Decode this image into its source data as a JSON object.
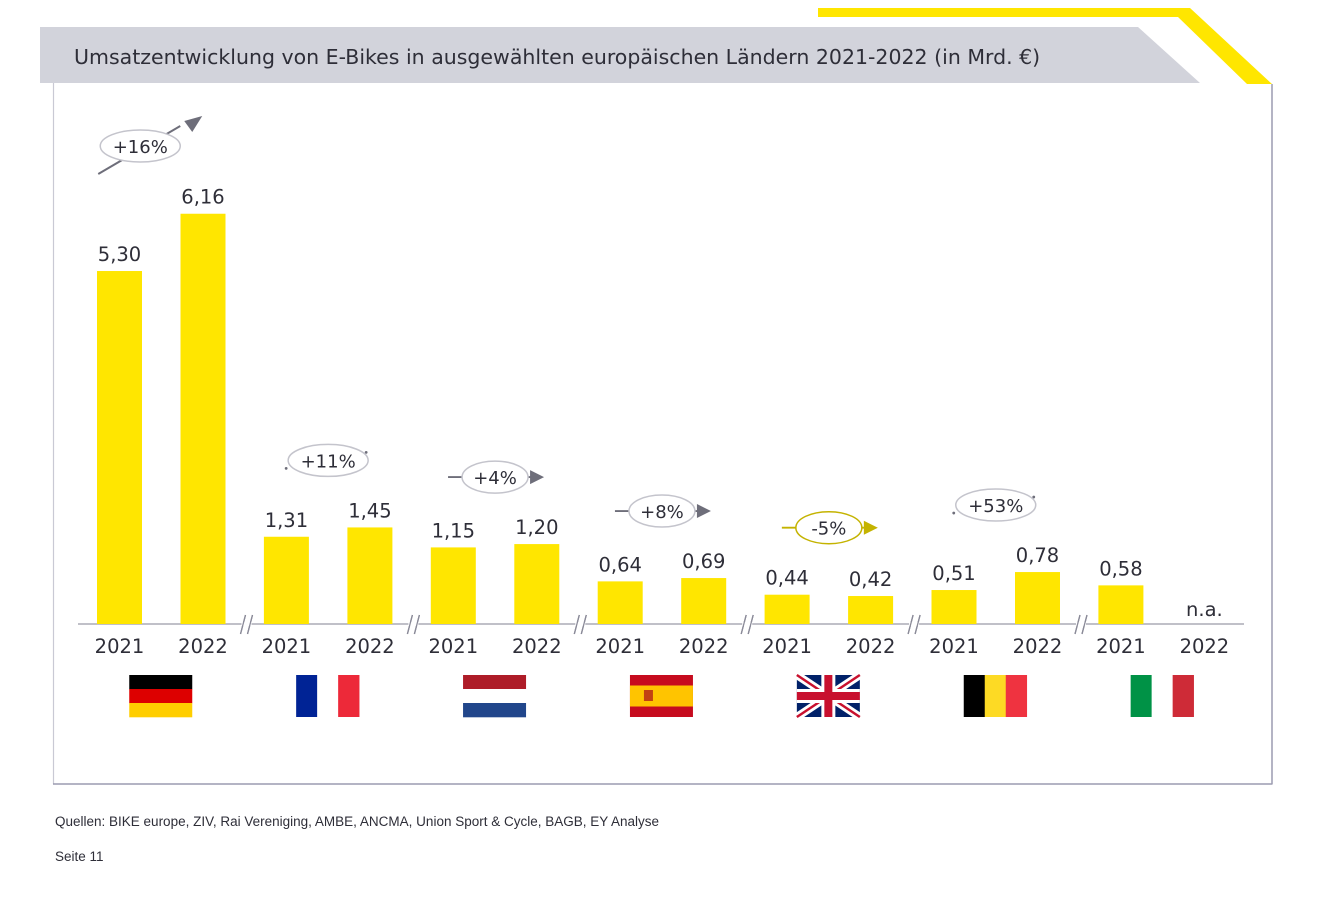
{
  "chart_data": {
    "type": "bar",
    "title": "Umsatzentwicklung von E-Bikes in ausgewählten europäischen Ländern 2021-2022 (in Mrd. €)",
    "xlabel": "",
    "ylabel": "",
    "unit": "Mrd. €",
    "ylim": [
      0,
      6.5
    ],
    "grid": false,
    "legend": "none",
    "bar_color": "#ffe600",
    "groups": [
      {
        "country": "Deutschland",
        "flag": "flag-germany",
        "years": [
          "2021",
          "2022"
        ],
        "values": [
          5.3,
          6.16
        ],
        "labels": [
          "5,30",
          "6,16"
        ],
        "change": "+16%",
        "trend": "up"
      },
      {
        "country": "Frankreich",
        "flag": "flag-france",
        "years": [
          "2021",
          "2022"
        ],
        "values": [
          1.31,
          1.45
        ],
        "labels": [
          "1,31",
          "1,45"
        ],
        "change": "+11%",
        "trend": "up"
      },
      {
        "country": "Niederlande",
        "flag": "flag-netherlands",
        "years": [
          "2021",
          "2022"
        ],
        "values": [
          1.15,
          1.2
        ],
        "labels": [
          "1,15",
          "1,20"
        ],
        "change": "+4%",
        "trend": "flat"
      },
      {
        "country": "Spanien",
        "flag": "flag-spain",
        "years": [
          "2021",
          "2022"
        ],
        "values": [
          0.64,
          0.69
        ],
        "labels": [
          "0,64",
          "0,69"
        ],
        "change": "+8%",
        "trend": "flat"
      },
      {
        "country": "Vereinigtes Königreich",
        "flag": "flag-uk",
        "years": [
          "2021",
          "2022"
        ],
        "values": [
          0.44,
          0.42
        ],
        "labels": [
          "0,44",
          "0,42"
        ],
        "change": "-5%",
        "trend": "down"
      },
      {
        "country": "Belgien",
        "flag": "flag-belgium",
        "years": [
          "2021",
          "2022"
        ],
        "values": [
          0.51,
          0.78
        ],
        "labels": [
          "0,51",
          "0,78"
        ],
        "change": "+53%",
        "trend": "up"
      },
      {
        "country": "Italien",
        "flag": "flag-italy",
        "years": [
          "2021",
          "2022"
        ],
        "values": [
          0.58,
          null
        ],
        "labels": [
          "0,58",
          "n.a."
        ],
        "change": null,
        "trend": null
      }
    ]
  },
  "colors": {
    "accent": "#ffe600",
    "title_band": "#d2d3db",
    "text": "#2e2e38",
    "frame": "#9c9cb0",
    "badge_neutral": "#6e6e7a",
    "badge_negative": "#c4b300"
  },
  "footer": {
    "sources": "Quellen: BIKE europe, ZIV, Rai Vereniging, AMBE, ANCMA, Union Sport & Cycle, BAGB, EY Analyse",
    "page": "Seite 11"
  }
}
